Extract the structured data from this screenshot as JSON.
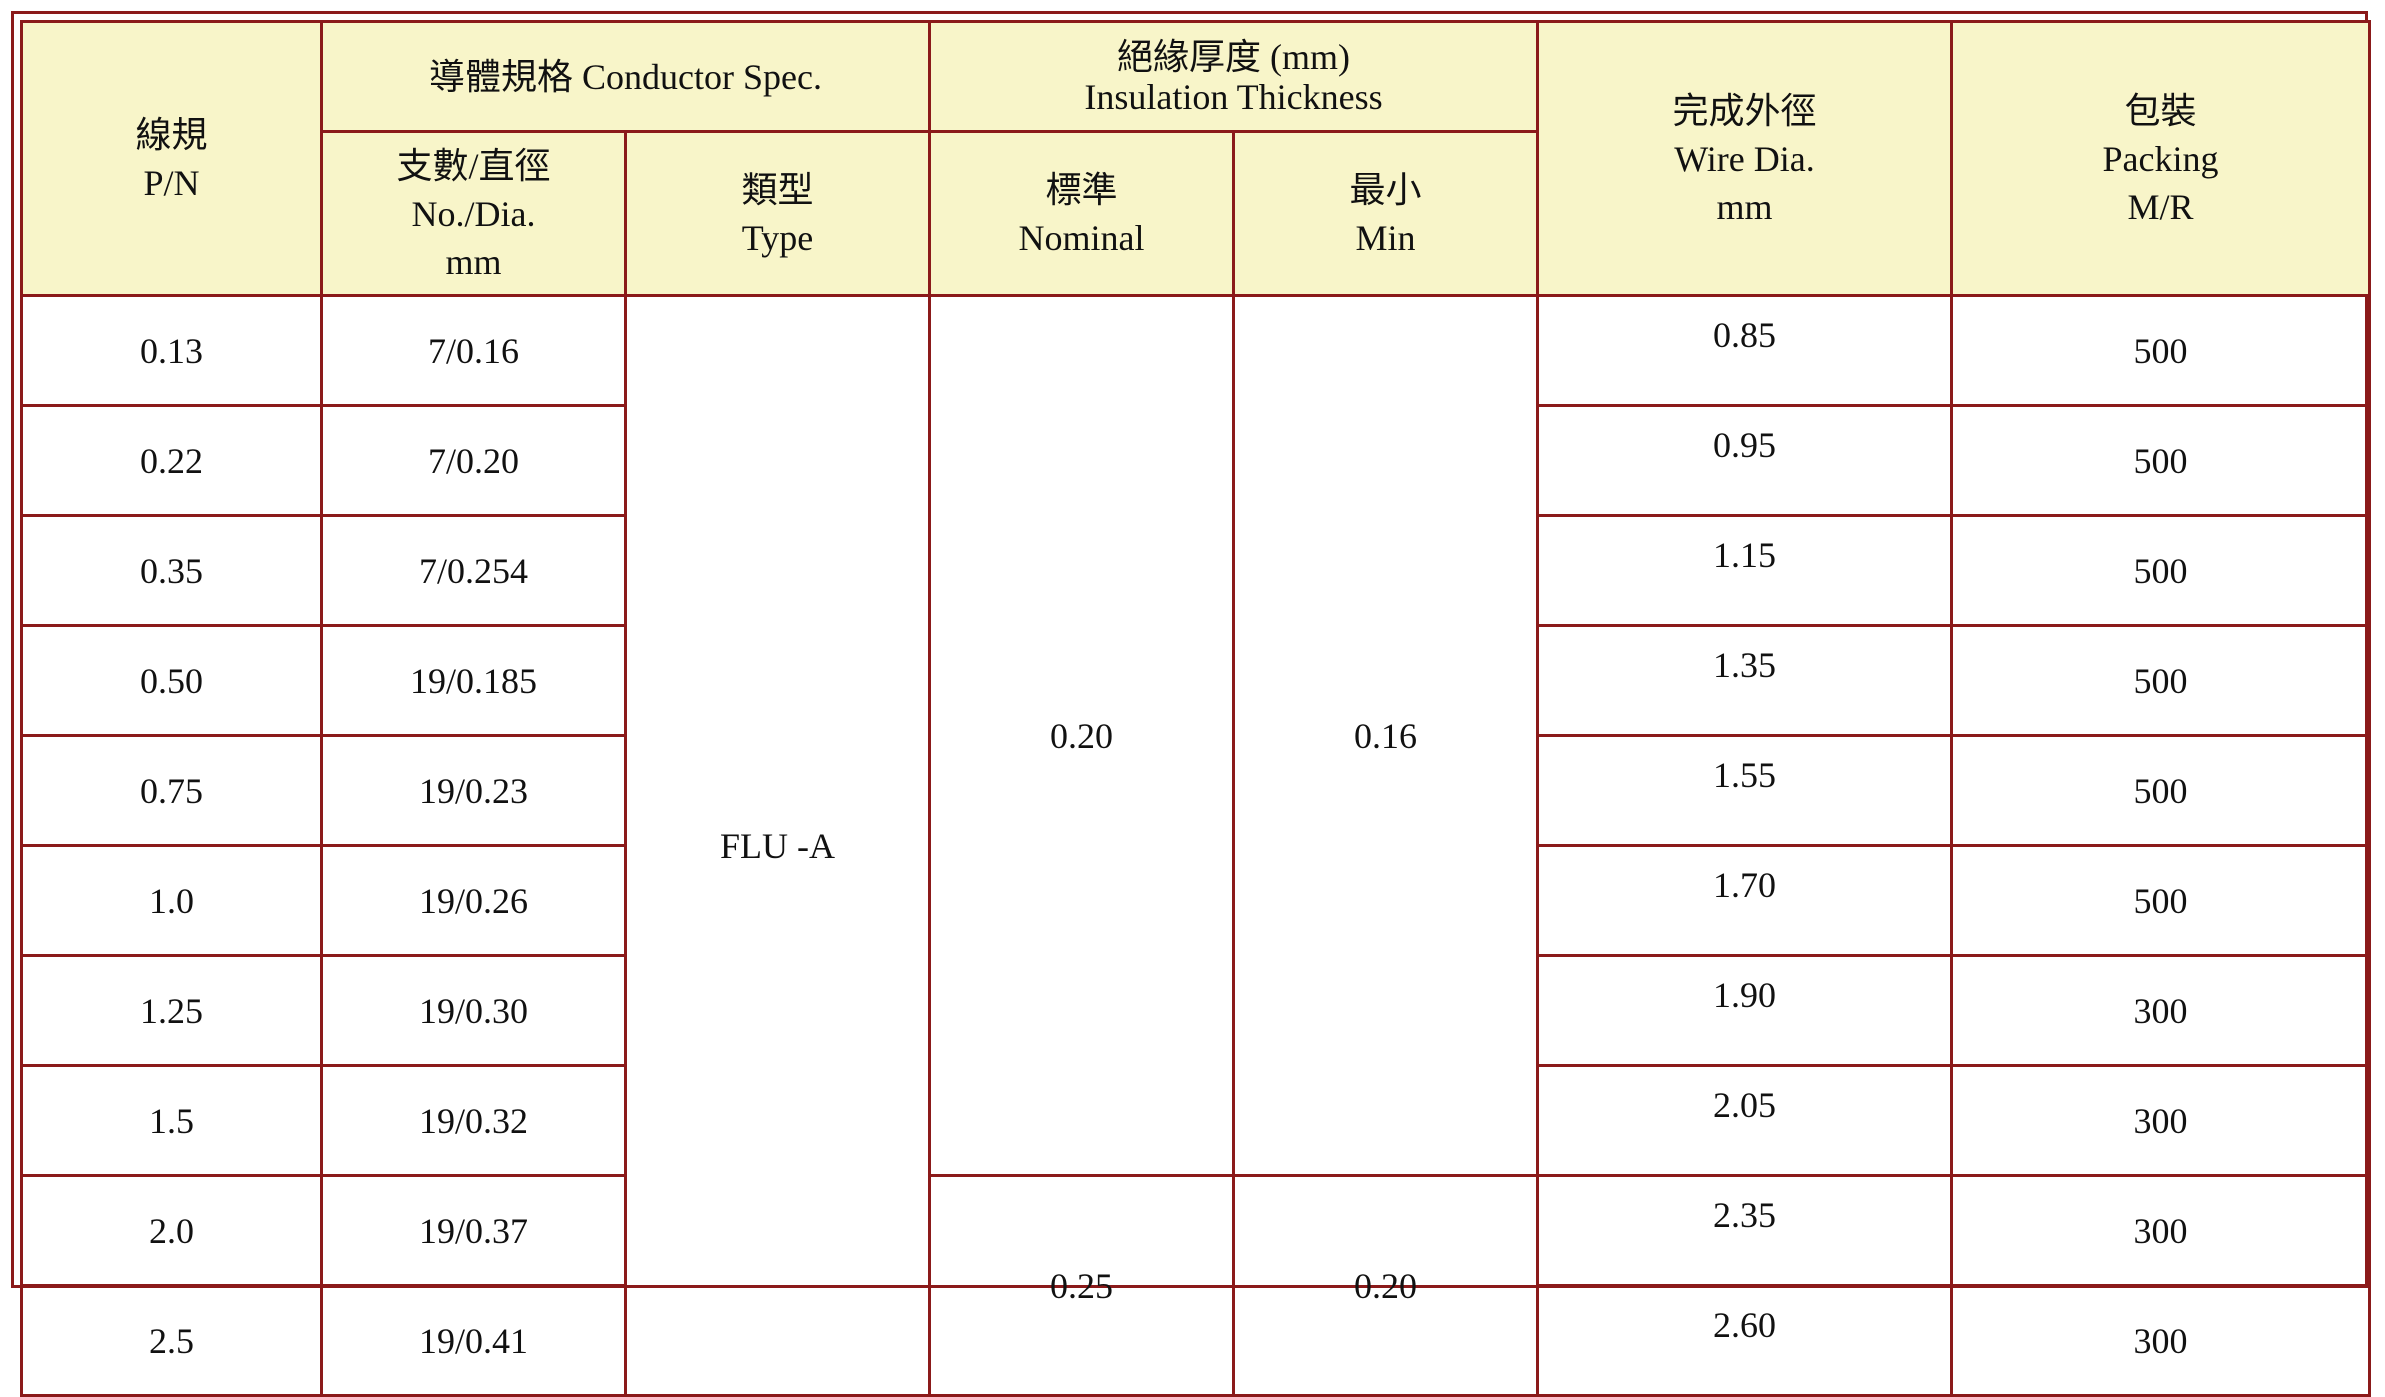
{
  "table": {
    "header": {
      "pn": [
        "線規",
        "P/N"
      ],
      "conductor": "導體規格 Conductor Spec.",
      "count": [
        "支數/直徑",
        "No./Dia.",
        "mm"
      ],
      "type": [
        "類型",
        "Type"
      ],
      "insulation": [
        "絕緣厚度  (mm)",
        "Insulation Thickness"
      ],
      "nominal": [
        "標準",
        "Nominal"
      ],
      "min": [
        "最小",
        "Min"
      ],
      "wire": [
        "完成外徑",
        "Wire Dia.",
        "mm"
      ],
      "packing": [
        "包裝",
        "Packing",
        "M/R"
      ]
    },
    "type_value": "FLU -A",
    "insulation_groups": [
      {
        "nominal": "0.20",
        "min": "0.16"
      },
      {
        "nominal": "0.25",
        "min": "0.20"
      }
    ],
    "rows": [
      [
        "0.13",
        "7/0.16",
        "0.85",
        "500"
      ],
      [
        "0.22",
        "7/0.20",
        "0.95",
        "500"
      ],
      [
        "0.35",
        "7/0.254",
        "1.15",
        "500"
      ],
      [
        "0.50",
        "19/0.185",
        "1.35",
        "500"
      ],
      [
        "0.75",
        "19/0.23",
        "1.55",
        "500"
      ],
      [
        "1.0",
        "19/0.26",
        "1.70",
        "500"
      ],
      [
        "1.25",
        "19/0.30",
        "1.90",
        "300"
      ],
      [
        "1.5",
        "19/0.32",
        "2.05",
        "300"
      ],
      [
        "2.0",
        "19/0.37",
        "2.35",
        "300"
      ],
      [
        "2.5",
        "19/0.41",
        "2.60",
        "300"
      ]
    ]
  }
}
